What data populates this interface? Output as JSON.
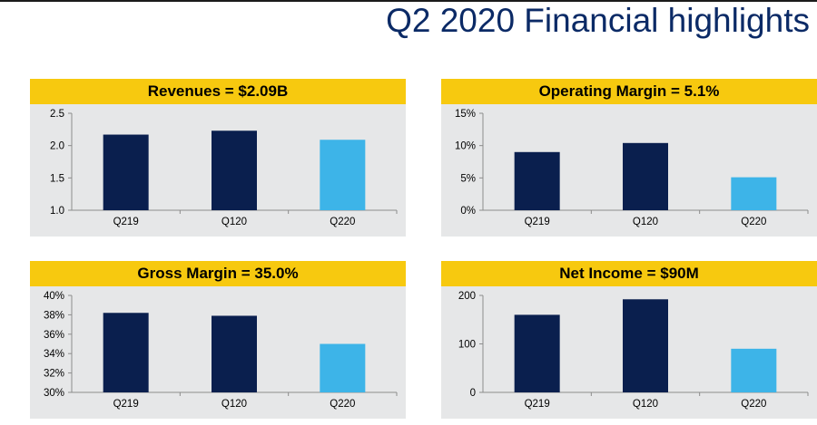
{
  "page": {
    "title": "Q2 2020 Financial highlights"
  },
  "colors": {
    "header": "#f7c90f",
    "bar_past": "#0a1f4e",
    "bar_current": "#3db4e8",
    "plot_bg": "#e6e7e8",
    "title": "#0b2a66"
  },
  "chart_data": [
    {
      "type": "bar",
      "title": "Revenues = $2.09B",
      "categories": [
        "Q219",
        "Q120",
        "Q220"
      ],
      "values": [
        2.17,
        2.23,
        2.09
      ],
      "ylim": [
        1.0,
        2.5
      ],
      "yticks": [
        1.0,
        1.5,
        2.0,
        2.5
      ],
      "ytick_labels": [
        "1.0",
        "1.5",
        "2.0",
        "2.5"
      ],
      "highlight": "Q220",
      "grid": false
    },
    {
      "type": "bar",
      "title": "Operating Margin = 5.1%",
      "categories": [
        "Q219",
        "Q120",
        "Q220"
      ],
      "values": [
        9.0,
        10.4,
        5.1
      ],
      "ylim": [
        0,
        15
      ],
      "yticks": [
        0,
        5,
        10,
        15
      ],
      "ytick_labels": [
        "0%",
        "5%",
        "10%",
        "15%"
      ],
      "highlight": "Q220",
      "grid": false
    },
    {
      "type": "bar",
      "title": "Gross Margin = 35.0%",
      "categories": [
        "Q219",
        "Q120",
        "Q220"
      ],
      "values": [
        38.2,
        37.9,
        35.0
      ],
      "ylim": [
        30,
        40
      ],
      "yticks": [
        30,
        32,
        34,
        36,
        38,
        40
      ],
      "ytick_labels": [
        "30%",
        "32%",
        "34%",
        "36%",
        "38%",
        "40%"
      ],
      "highlight": "Q220",
      "grid": false
    },
    {
      "type": "bar",
      "title": "Net Income = $90M",
      "categories": [
        "Q219",
        "Q120",
        "Q220"
      ],
      "values": [
        160,
        192,
        90
      ],
      "ylim": [
        0,
        200
      ],
      "yticks": [
        0,
        100,
        200
      ],
      "ytick_labels": [
        "0",
        "100",
        "200"
      ],
      "highlight": "Q220",
      "grid": false
    }
  ]
}
